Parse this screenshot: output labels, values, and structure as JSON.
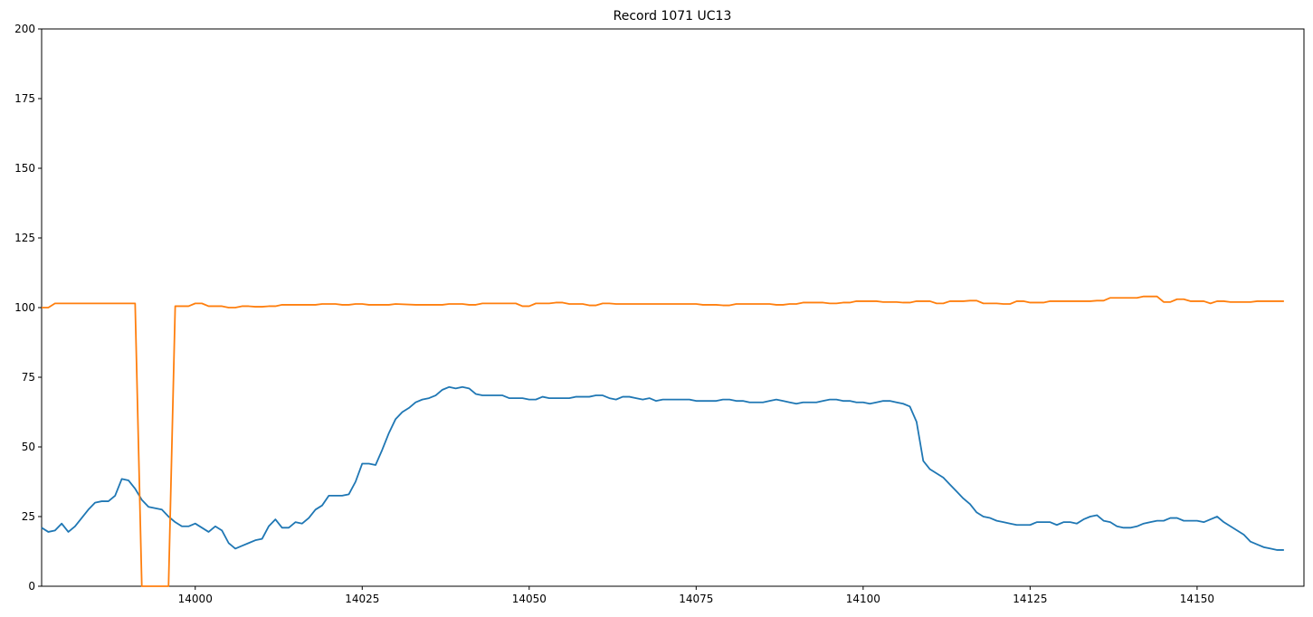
{
  "chart_data": {
    "type": "line",
    "title": "Record 1071 UC13",
    "xlabel": "",
    "ylabel": "",
    "xlim": [
      13977,
      14166
    ],
    "ylim": [
      0,
      200
    ],
    "grid": false,
    "xticks": [
      14000,
      14025,
      14050,
      14075,
      14100,
      14125,
      14150
    ],
    "yticks": [
      0,
      25,
      50,
      75,
      100,
      125,
      150,
      175,
      200
    ],
    "series": [
      {
        "color": "#1f77b4",
        "points": [
          [
            13977,
            21
          ],
          [
            13978,
            19.5
          ],
          [
            13979,
            20
          ],
          [
            13980,
            22.5
          ],
          [
            13981,
            19.5
          ],
          [
            13982,
            21.5
          ],
          [
            13983,
            24.5
          ],
          [
            13984,
            27.5
          ],
          [
            13985,
            30
          ],
          [
            13986,
            30.5
          ],
          [
            13987,
            30.5
          ],
          [
            13988,
            32.5
          ],
          [
            13989,
            38.5
          ],
          [
            13990,
            38
          ],
          [
            13991,
            35
          ],
          [
            13992,
            31
          ],
          [
            13993,
            28.5
          ],
          [
            13994,
            28
          ],
          [
            13995,
            27.5
          ],
          [
            13996,
            25
          ],
          [
            13997,
            23
          ],
          [
            13998,
            21.5
          ],
          [
            13999,
            21.5
          ],
          [
            14000,
            22.5
          ],
          [
            14001,
            21
          ],
          [
            14002,
            19.5
          ],
          [
            14003,
            21.5
          ],
          [
            14004,
            20
          ],
          [
            14005,
            15.5
          ],
          [
            14006,
            13.5
          ],
          [
            14007,
            14.5
          ],
          [
            14008,
            15.5
          ],
          [
            14009,
            16.5
          ],
          [
            14010,
            17
          ],
          [
            14011,
            21.5
          ],
          [
            14012,
            24
          ],
          [
            14013,
            21
          ],
          [
            14014,
            21
          ],
          [
            14015,
            23
          ],
          [
            14016,
            22.5
          ],
          [
            14017,
            24.5
          ],
          [
            14018,
            27.5
          ],
          [
            14019,
            29
          ],
          [
            14020,
            32.5
          ],
          [
            14021,
            32.5
          ],
          [
            14022,
            32.5
          ],
          [
            14023,
            33
          ],
          [
            14024,
            37.5
          ],
          [
            14025,
            44
          ],
          [
            14026,
            44
          ],
          [
            14027,
            43.5
          ],
          [
            14028,
            49
          ],
          [
            14029,
            55
          ],
          [
            14030,
            60
          ],
          [
            14031,
            62.5
          ],
          [
            14032,
            64
          ],
          [
            14033,
            66
          ],
          [
            14034,
            67
          ],
          [
            14035,
            67.5
          ],
          [
            14036,
            68.5
          ],
          [
            14037,
            70.5
          ],
          [
            14038,
            71.5
          ],
          [
            14039,
            71
          ],
          [
            14040,
            71.5
          ],
          [
            14041,
            71
          ],
          [
            14042,
            69
          ],
          [
            14043,
            68.5
          ],
          [
            14044,
            68.5
          ],
          [
            14045,
            68.5
          ],
          [
            14046,
            68.5
          ],
          [
            14047,
            67.5
          ],
          [
            14048,
            67.5
          ],
          [
            14049,
            67.5
          ],
          [
            14050,
            67
          ],
          [
            14051,
            67
          ],
          [
            14052,
            68
          ],
          [
            14053,
            67.5
          ],
          [
            14054,
            67.5
          ],
          [
            14055,
            67.5
          ],
          [
            14056,
            67.5
          ],
          [
            14057,
            68
          ],
          [
            14058,
            68
          ],
          [
            14059,
            68
          ],
          [
            14060,
            68.5
          ],
          [
            14061,
            68.5
          ],
          [
            14062,
            67.5
          ],
          [
            14063,
            67
          ],
          [
            14064,
            68
          ],
          [
            14065,
            68
          ],
          [
            14066,
            67.5
          ],
          [
            14067,
            67
          ],
          [
            14068,
            67.5
          ],
          [
            14069,
            66.5
          ],
          [
            14070,
            67
          ],
          [
            14071,
            67
          ],
          [
            14072,
            67
          ],
          [
            14073,
            67
          ],
          [
            14074,
            67
          ],
          [
            14075,
            66.5
          ],
          [
            14076,
            66.5
          ],
          [
            14077,
            66.5
          ],
          [
            14078,
            66.5
          ],
          [
            14079,
            67
          ],
          [
            14080,
            67
          ],
          [
            14081,
            66.5
          ],
          [
            14082,
            66.5
          ],
          [
            14083,
            66
          ],
          [
            14084,
            66
          ],
          [
            14085,
            66
          ],
          [
            14086,
            66.5
          ],
          [
            14087,
            67
          ],
          [
            14088,
            66.5
          ],
          [
            14089,
            66
          ],
          [
            14090,
            65.5
          ],
          [
            14091,
            66
          ],
          [
            14092,
            66
          ],
          [
            14093,
            66
          ],
          [
            14094,
            66.5
          ],
          [
            14095,
            67
          ],
          [
            14096,
            67
          ],
          [
            14097,
            66.5
          ],
          [
            14098,
            66.5
          ],
          [
            14099,
            66
          ],
          [
            14100,
            66
          ],
          [
            14101,
            65.5
          ],
          [
            14102,
            66
          ],
          [
            14103,
            66.5
          ],
          [
            14104,
            66.5
          ],
          [
            14105,
            66
          ],
          [
            14106,
            65.5
          ],
          [
            14107,
            64.5
          ],
          [
            14108,
            59
          ],
          [
            14109,
            45
          ],
          [
            14110,
            42
          ],
          [
            14111,
            40.5
          ],
          [
            14112,
            39
          ],
          [
            14113,
            36.5
          ],
          [
            14114,
            34
          ],
          [
            14115,
            31.5
          ],
          [
            14116,
            29.5
          ],
          [
            14117,
            26.5
          ],
          [
            14118,
            25
          ],
          [
            14119,
            24.5
          ],
          [
            14120,
            23.5
          ],
          [
            14121,
            23
          ],
          [
            14122,
            22.5
          ],
          [
            14123,
            22
          ],
          [
            14124,
            22
          ],
          [
            14125,
            22
          ],
          [
            14126,
            23
          ],
          [
            14127,
            23
          ],
          [
            14128,
            23
          ],
          [
            14129,
            22
          ],
          [
            14130,
            23
          ],
          [
            14131,
            23
          ],
          [
            14132,
            22.5
          ],
          [
            14133,
            24
          ],
          [
            14134,
            25
          ],
          [
            14135,
            25.5
          ],
          [
            14136,
            23.5
          ],
          [
            14137,
            23
          ],
          [
            14138,
            21.5
          ],
          [
            14139,
            21
          ],
          [
            14140,
            21
          ],
          [
            14141,
            21.5
          ],
          [
            14142,
            22.5
          ],
          [
            14143,
            23
          ],
          [
            14144,
            23.5
          ],
          [
            14145,
            23.5
          ],
          [
            14146,
            24.5
          ],
          [
            14147,
            24.5
          ],
          [
            14148,
            23.5
          ],
          [
            14149,
            23.5
          ],
          [
            14150,
            23.5
          ],
          [
            14151,
            23
          ],
          [
            14152,
            24
          ],
          [
            14153,
            25
          ],
          [
            14154,
            23
          ],
          [
            14155,
            21.5
          ],
          [
            14156,
            20
          ],
          [
            14157,
            18.5
          ],
          [
            14158,
            16
          ],
          [
            14159,
            15
          ],
          [
            14160,
            14
          ],
          [
            14161,
            13.5
          ],
          [
            14162,
            13
          ],
          [
            14163,
            13
          ]
        ]
      },
      {
        "color": "#ff7f0e",
        "points": [
          [
            13977,
            100
          ],
          [
            13978,
            100
          ],
          [
            13979,
            101.5
          ],
          [
            13980,
            101.5
          ],
          [
            13985,
            101.5
          ],
          [
            13990,
            101.5
          ],
          [
            13991,
            101.5
          ],
          [
            13992,
            0
          ],
          [
            13996,
            0
          ],
          [
            13997,
            100.5
          ],
          [
            13998,
            100.5
          ],
          [
            13999,
            100.5
          ],
          [
            14000,
            101.5
          ],
          [
            14001,
            101.5
          ],
          [
            14002,
            100.5
          ],
          [
            14004,
            100.5
          ],
          [
            14005,
            100
          ],
          [
            14006,
            100
          ],
          [
            14007,
            100.5
          ],
          [
            14008,
            100.5
          ],
          [
            14009,
            100.3
          ],
          [
            14010,
            100.3
          ],
          [
            14011,
            100.5
          ],
          [
            14012,
            100.5
          ],
          [
            14013,
            101
          ],
          [
            14015,
            101
          ],
          [
            14018,
            101
          ],
          [
            14019,
            101.3
          ],
          [
            14021,
            101.3
          ],
          [
            14022,
            101
          ],
          [
            14023,
            101
          ],
          [
            14024,
            101.3
          ],
          [
            14025,
            101.3
          ],
          [
            14026,
            101
          ],
          [
            14029,
            101
          ],
          [
            14030,
            101.3
          ],
          [
            14033,
            101
          ],
          [
            14037,
            101
          ],
          [
            14038,
            101.3
          ],
          [
            14040,
            101.3
          ],
          [
            14041,
            101
          ],
          [
            14042,
            101
          ],
          [
            14043,
            101.5
          ],
          [
            14048,
            101.5
          ],
          [
            14049,
            100.5
          ],
          [
            14050,
            100.5
          ],
          [
            14051,
            101.5
          ],
          [
            14052,
            101.5
          ],
          [
            14053,
            101.5
          ],
          [
            14054,
            101.8
          ],
          [
            14055,
            101.8
          ],
          [
            14056,
            101.3
          ],
          [
            14058,
            101.3
          ],
          [
            14059,
            100.8
          ],
          [
            14060,
            100.8
          ],
          [
            14061,
            101.5
          ],
          [
            14062,
            101.5
          ],
          [
            14063,
            101.3
          ],
          [
            14075,
            101.3
          ],
          [
            14076,
            101
          ],
          [
            14078,
            101
          ],
          [
            14079,
            100.8
          ],
          [
            14080,
            100.8
          ],
          [
            14081,
            101.3
          ],
          [
            14086,
            101.3
          ],
          [
            14087,
            101
          ],
          [
            14088,
            101
          ],
          [
            14089,
            101.3
          ],
          [
            14090,
            101.3
          ],
          [
            14091,
            101.8
          ],
          [
            14094,
            101.8
          ],
          [
            14095,
            101.5
          ],
          [
            14096,
            101.5
          ],
          [
            14097,
            101.8
          ],
          [
            14098,
            101.8
          ],
          [
            14099,
            102.3
          ],
          [
            14102,
            102.3
          ],
          [
            14103,
            102
          ],
          [
            14105,
            102
          ],
          [
            14106,
            101.8
          ],
          [
            14107,
            101.8
          ],
          [
            14108,
            102.3
          ],
          [
            14110,
            102.3
          ],
          [
            14111,
            101.5
          ],
          [
            14112,
            101.5
          ],
          [
            14113,
            102.3
          ],
          [
            14115,
            102.3
          ],
          [
            14116,
            102.5
          ],
          [
            14117,
            102.5
          ],
          [
            14118,
            101.5
          ],
          [
            14120,
            101.5
          ],
          [
            14121,
            101.3
          ],
          [
            14122,
            101.3
          ],
          [
            14123,
            102.3
          ],
          [
            14124,
            102.3
          ],
          [
            14125,
            101.8
          ],
          [
            14127,
            101.8
          ],
          [
            14128,
            102.3
          ],
          [
            14134,
            102.3
          ],
          [
            14135,
            102.5
          ],
          [
            14136,
            102.5
          ],
          [
            14137,
            103.5
          ],
          [
            14141,
            103.5
          ],
          [
            14142,
            104
          ],
          [
            14144,
            104
          ],
          [
            14145,
            102
          ],
          [
            14146,
            102
          ],
          [
            14147,
            103
          ],
          [
            14148,
            103
          ],
          [
            14149,
            102.3
          ],
          [
            14151,
            102.3
          ],
          [
            14152,
            101.5
          ],
          [
            14153,
            102.3
          ],
          [
            14154,
            102.3
          ],
          [
            14155,
            102
          ],
          [
            14158,
            102
          ],
          [
            14159,
            102.3
          ],
          [
            14162,
            102.3
          ],
          [
            14163,
            102.3
          ]
        ]
      }
    ]
  }
}
